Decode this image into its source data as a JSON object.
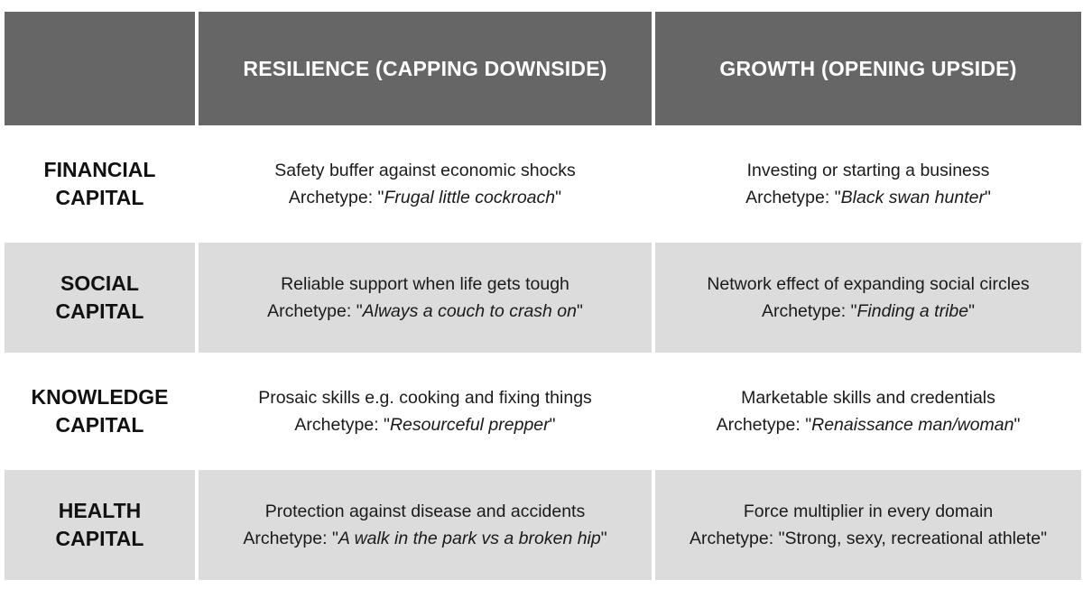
{
  "header": {
    "col1": "RESILIENCE (CAPPING DOWNSIDE)",
    "col2": "GROWTH (OPENING UPSIDE)"
  },
  "archetype_prefix": "Archetype: \"",
  "archetype_suffix": "\"",
  "rows": [
    {
      "label_line1": "FINANCIAL",
      "label_line2": "CAPITAL",
      "resilience": {
        "text": "Safety buffer against economic shocks",
        "archetype": "Frugal little cockroach"
      },
      "growth": {
        "text": "Investing or starting a business",
        "archetype": "Black swan hunter"
      }
    },
    {
      "label_line1": "SOCIAL",
      "label_line2": "CAPITAL",
      "resilience": {
        "text": "Reliable support when life gets tough",
        "archetype": "Always a couch to crash on"
      },
      "growth": {
        "text": "Network effect of expanding social circles",
        "archetype": "Finding a tribe"
      }
    },
    {
      "label_line1": "KNOWLEDGE",
      "label_line2": "CAPITAL",
      "resilience": {
        "text": "Prosaic skills e.g. cooking and fixing things",
        "archetype": "Resourceful prepper"
      },
      "growth": {
        "text": "Marketable skills and credentials",
        "archetype": "Renaissance man/woman"
      }
    },
    {
      "label_line1": "HEALTH",
      "label_line2": "CAPITAL",
      "resilience": {
        "text": "Protection against disease and accidents",
        "archetype": "A walk in the park vs a broken hip"
      },
      "growth": {
        "text": "Force multiplier in every domain",
        "archetype_plain": "Archetype: \"Strong, sexy, recreational athlete\""
      }
    }
  ]
}
